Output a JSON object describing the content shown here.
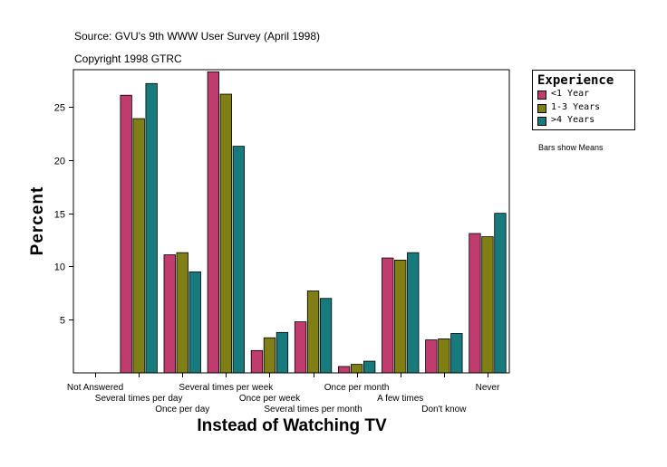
{
  "header": {
    "source": "Source: GVU's 9th WWW User Survey (April 1998)",
    "copyright": "Copyright 1998 GTRC"
  },
  "note": "Bars show Means",
  "colors": {
    "series": [
      "#c03c6e",
      "#7f7f16",
      "#177b7d"
    ],
    "border": "#000000"
  },
  "chart_data": {
    "type": "bar",
    "title": "",
    "xlabel": "Instead of Watching TV",
    "ylabel": "Percent",
    "ylim": [
      0,
      28.5
    ],
    "yticks": [
      5,
      10,
      15,
      20,
      25
    ],
    "grid": false,
    "legend_title": "Experience",
    "legend_position": "right",
    "categories": [
      "Not Answered",
      "Several times per day",
      "Once per day",
      "Several times per week",
      "Once per week",
      "Several times per month",
      "Once per month",
      "A few times",
      "Don't know",
      "Never"
    ],
    "series": [
      {
        "name": "<1 Year",
        "values": [
          0,
          26.1,
          11.1,
          28.3,
          2.1,
          4.8,
          0.6,
          10.8,
          3.1,
          13.1
        ]
      },
      {
        "name": "1-3 Years",
        "values": [
          0,
          23.9,
          11.3,
          26.2,
          3.3,
          7.7,
          0.8,
          10.6,
          3.2,
          12.8
        ]
      },
      {
        "name": ">4 Years",
        "values": [
          0,
          27.2,
          9.5,
          21.3,
          3.8,
          7.0,
          1.1,
          11.3,
          3.7,
          15.0
        ]
      }
    ]
  }
}
